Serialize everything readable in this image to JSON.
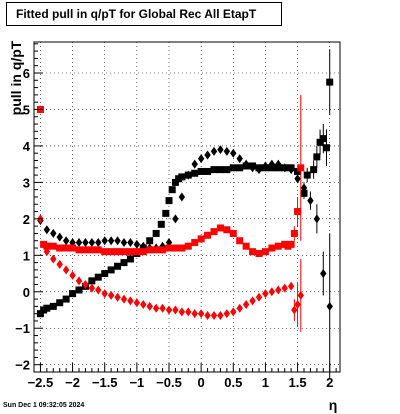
{
  "title": "Fitted pull in q/pT for Global Rec All EtapT",
  "timestamp": "Sun Dec  1 09:32:05 2024",
  "chart_data": {
    "type": "scatter",
    "xlabel": "η",
    "ylabel": "pull in q/pT",
    "xlim": [
      -2.6,
      2.16
    ],
    "ylim": [
      -2.2,
      6.85
    ],
    "x_ticks": [
      -2.5,
      -2,
      -1.5,
      -1,
      -0.5,
      0,
      0.5,
      1,
      1.5,
      2
    ],
    "x_tick_labels": [
      "−2.5",
      "−2",
      "−1.5",
      "−1",
      "−0.5",
      "0",
      "0.5",
      "1",
      "1.5",
      "2"
    ],
    "y_ticks": [
      -2,
      -1,
      0,
      1,
      2,
      3,
      4,
      5,
      6
    ],
    "y_tick_labels": [
      "−2",
      "−1",
      "0",
      "1",
      "2",
      "3",
      "4",
      "5",
      "6"
    ],
    "grid": true,
    "colors": {
      "black": "#000000",
      "red": "#ff0000"
    },
    "series": [
      {
        "marker": "square",
        "color": "#000000",
        "x": [
          -2.5,
          -2.45,
          -2.4,
          -2.3,
          -2.2,
          -2.1,
          -2.0,
          -1.9,
          -1.8,
          -1.7,
          -1.6,
          -1.5,
          -1.4,
          -1.3,
          -1.2,
          -1.1,
          -1.0,
          -0.9,
          -0.8,
          -0.7,
          -0.62,
          -0.55,
          -0.5,
          -0.45,
          -0.4,
          -0.35,
          -0.3,
          -0.2,
          -0.1,
          0.0,
          0.1,
          0.2,
          0.3,
          0.4,
          0.5,
          0.6,
          0.7,
          0.8,
          0.9,
          1.0,
          1.1,
          1.2,
          1.3,
          1.4,
          1.5,
          1.6,
          1.65,
          1.75,
          1.8,
          1.85,
          1.9,
          1.95,
          2.0
        ],
        "y": [
          -0.6,
          -0.5,
          -0.45,
          -0.4,
          -0.3,
          -0.2,
          -0.05,
          0.05,
          0.15,
          0.3,
          0.4,
          0.5,
          0.6,
          0.7,
          0.8,
          0.9,
          1.05,
          1.2,
          1.4,
          1.6,
          1.85,
          2.15,
          2.5,
          2.8,
          3.0,
          3.1,
          3.15,
          3.2,
          3.25,
          3.3,
          3.3,
          3.35,
          3.35,
          3.35,
          3.4,
          3.4,
          3.45,
          3.45,
          3.4,
          3.4,
          3.4,
          3.4,
          3.4,
          3.4,
          3.3,
          2.7,
          3.2,
          3.35,
          3.7,
          4.1,
          4.2,
          3.95,
          5.75
        ],
        "err": [
          0.05,
          0.05,
          0.05,
          0.04,
          0.04,
          0.04,
          0.04,
          0.04,
          0.04,
          0.04,
          0.04,
          0.04,
          0.04,
          0.04,
          0.04,
          0.04,
          0.04,
          0.05,
          0.05,
          0.05,
          0.05,
          0.05,
          0.05,
          0.05,
          0.05,
          0.05,
          0.04,
          0.04,
          0.04,
          0.04,
          0.04,
          0.04,
          0.04,
          0.04,
          0.04,
          0.04,
          0.04,
          0.04,
          0.04,
          0.04,
          0.05,
          0.06,
          0.07,
          0.08,
          0.1,
          0.15,
          0.2,
          0.25,
          0.3,
          0.35,
          0.4,
          0.5,
          0.9
        ]
      },
      {
        "marker": "diamond",
        "color": "#000000",
        "x": [
          -2.5,
          -2.4,
          -2.3,
          -2.2,
          -2.1,
          -2.0,
          -1.9,
          -1.8,
          -1.7,
          -1.6,
          -1.5,
          -1.4,
          -1.3,
          -1.2,
          -1.1,
          -1.0,
          -0.9,
          -0.8,
          -0.7,
          -0.6,
          -0.5,
          -0.4,
          -0.3,
          -0.2,
          -0.1,
          0.0,
          0.1,
          0.2,
          0.3,
          0.4,
          0.5,
          0.6,
          0.7,
          0.8,
          0.9,
          1.0,
          1.1,
          1.2,
          1.3,
          1.4,
          1.5,
          1.6,
          1.7,
          1.8,
          1.9,
          2.0
        ],
        "y": [
          1.95,
          1.7,
          1.6,
          1.5,
          1.4,
          1.35,
          1.35,
          1.35,
          1.35,
          1.35,
          1.4,
          1.4,
          1.4,
          1.35,
          1.35,
          1.3,
          1.25,
          1.2,
          1.2,
          1.25,
          1.35,
          2.0,
          2.6,
          3.2,
          3.5,
          3.65,
          3.75,
          3.85,
          3.9,
          3.85,
          3.8,
          3.65,
          3.5,
          3.4,
          3.35,
          3.45,
          3.5,
          3.5,
          3.4,
          3.35,
          3.1,
          2.85,
          2.5,
          2.0,
          0.5,
          -0.4
        ],
        "err": [
          0.05,
          0.05,
          0.05,
          0.04,
          0.04,
          0.04,
          0.04,
          0.04,
          0.04,
          0.04,
          0.04,
          0.04,
          0.04,
          0.04,
          0.04,
          0.04,
          0.04,
          0.04,
          0.04,
          0.04,
          0.05,
          0.05,
          0.05,
          0.05,
          0.04,
          0.04,
          0.04,
          0.04,
          0.04,
          0.04,
          0.04,
          0.04,
          0.04,
          0.04,
          0.04,
          0.04,
          0.05,
          0.06,
          0.07,
          0.08,
          0.1,
          0.15,
          0.25,
          0.4,
          0.6,
          2.0
        ]
      },
      {
        "marker": "square",
        "color": "#ff0000",
        "x": [
          -2.5,
          -2.45,
          -2.4,
          -2.3,
          -2.2,
          -2.1,
          -2.0,
          -1.9,
          -1.8,
          -1.7,
          -1.6,
          -1.5,
          -1.4,
          -1.3,
          -1.2,
          -1.1,
          -1.0,
          -0.9,
          -0.8,
          -0.7,
          -0.6,
          -0.5,
          -0.4,
          -0.3,
          -0.2,
          -0.1,
          0.0,
          0.1,
          0.2,
          0.3,
          0.4,
          0.5,
          0.6,
          0.7,
          0.8,
          0.9,
          1.0,
          1.1,
          1.2,
          1.3,
          1.35,
          1.4,
          1.45,
          1.5,
          1.55
        ],
        "y": [
          5.0,
          1.3,
          1.25,
          1.25,
          1.2,
          1.2,
          1.2,
          1.15,
          1.15,
          1.15,
          1.15,
          1.1,
          1.1,
          1.1,
          1.1,
          1.1,
          1.1,
          1.1,
          1.15,
          1.15,
          1.15,
          1.2,
          1.2,
          1.2,
          1.25,
          1.35,
          1.45,
          1.55,
          1.65,
          1.75,
          1.7,
          1.6,
          1.4,
          1.25,
          1.1,
          1.05,
          1.1,
          1.2,
          1.25,
          1.3,
          1.25,
          1.3,
          1.6,
          2.2,
          3.4
        ],
        "err": [
          0.1,
          0.05,
          0.05,
          0.04,
          0.04,
          0.04,
          0.04,
          0.04,
          0.04,
          0.04,
          0.04,
          0.04,
          0.04,
          0.04,
          0.04,
          0.04,
          0.04,
          0.04,
          0.04,
          0.04,
          0.04,
          0.04,
          0.04,
          0.04,
          0.04,
          0.04,
          0.04,
          0.04,
          0.04,
          0.04,
          0.04,
          0.04,
          0.04,
          0.04,
          0.04,
          0.04,
          0.05,
          0.05,
          0.06,
          0.07,
          0.08,
          0.1,
          0.2,
          0.4,
          2.0
        ]
      },
      {
        "marker": "diamond",
        "color": "#ff0000",
        "x": [
          -2.5,
          -2.4,
          -2.3,
          -2.2,
          -2.1,
          -2.0,
          -1.9,
          -1.8,
          -1.7,
          -1.6,
          -1.5,
          -1.4,
          -1.3,
          -1.2,
          -1.1,
          -1.0,
          -0.9,
          -0.8,
          -0.7,
          -0.6,
          -0.5,
          -0.4,
          -0.3,
          -0.2,
          -0.1,
          0.0,
          0.1,
          0.2,
          0.3,
          0.4,
          0.5,
          0.6,
          0.7,
          0.8,
          0.9,
          1.0,
          1.1,
          1.2,
          1.3,
          1.4,
          1.45,
          1.5,
          1.55
        ],
        "y": [
          2.0,
          1.1,
          0.9,
          0.75,
          0.6,
          0.45,
          0.3,
          0.2,
          0.1,
          0.05,
          -0.05,
          -0.1,
          -0.15,
          -0.2,
          -0.25,
          -0.3,
          -0.35,
          -0.4,
          -0.45,
          -0.45,
          -0.5,
          -0.5,
          -0.55,
          -0.55,
          -0.6,
          -0.6,
          -0.65,
          -0.65,
          -0.65,
          -0.6,
          -0.55,
          -0.45,
          -0.35,
          -0.25,
          -0.15,
          -0.05,
          0.0,
          0.05,
          0.1,
          0.15,
          -0.5,
          -0.35,
          -0.1
        ],
        "err": [
          0.1,
          0.05,
          0.05,
          0.04,
          0.04,
          0.04,
          0.04,
          0.04,
          0.04,
          0.04,
          0.04,
          0.04,
          0.04,
          0.04,
          0.04,
          0.04,
          0.04,
          0.04,
          0.04,
          0.04,
          0.04,
          0.04,
          0.04,
          0.04,
          0.04,
          0.04,
          0.04,
          0.04,
          0.04,
          0.04,
          0.04,
          0.04,
          0.04,
          0.05,
          0.05,
          0.05,
          0.06,
          0.07,
          0.08,
          0.1,
          0.3,
          0.6,
          1.0
        ]
      }
    ]
  }
}
